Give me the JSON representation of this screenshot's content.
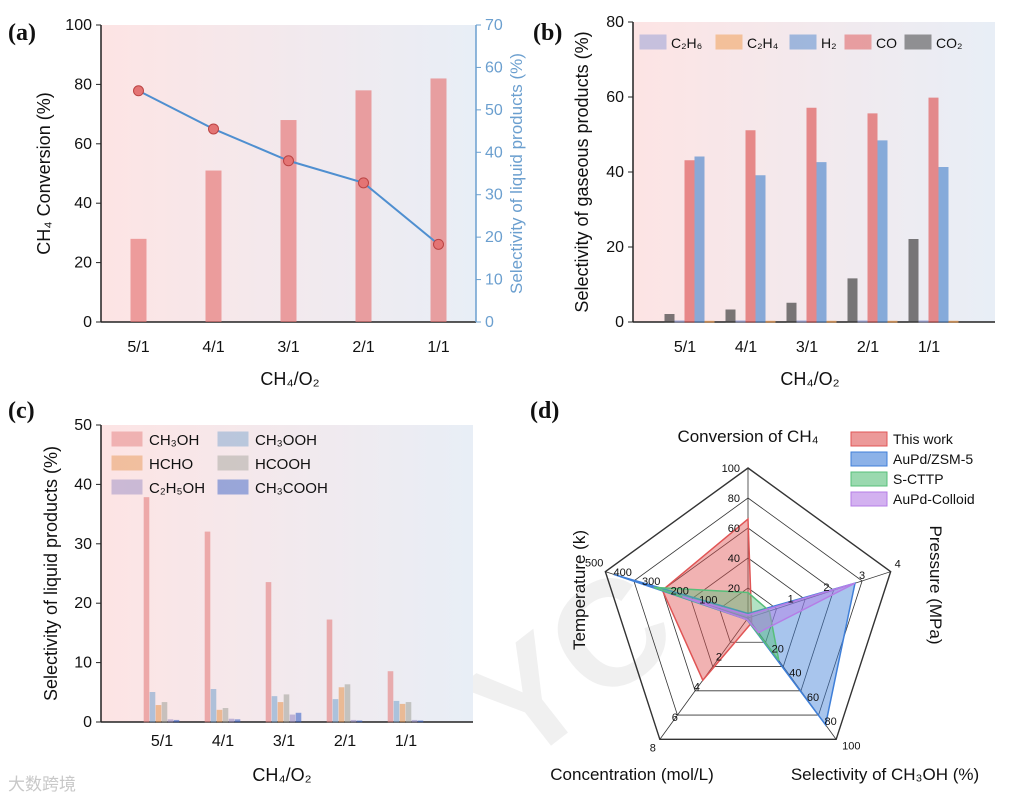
{
  "watermark": "大数跨境",
  "colors": {
    "ch4": "#e57373",
    "line": "#4f8fd0",
    "line_axis": "#6b9fcf",
    "C2H6": "#9aa3d8",
    "C2H4": "#f0a25a",
    "H2": "#5b8fd0",
    "CO": "#e06060",
    "CO2": "#444444",
    "CH3OH": "#e58080",
    "CH3OOH": "#7fa7cf",
    "HCHO": "#e89a5a",
    "HCOOH": "#a8a8a0",
    "C2H5OH": "#9b8fc6",
    "CH3COOH": "#3f66c8",
    "this_work": "#e05555",
    "aupd_zsm5": "#3f7fd8",
    "s_cttp": "#57bf7a",
    "aupd_colloid": "#b57de6"
  },
  "chart_data": [
    {
      "panel": "(a)",
      "type": "bar",
      "categories": [
        "5/1",
        "4/1",
        "3/1",
        "2/1",
        "1/1"
      ],
      "xlabel": "CH₄/O₂",
      "ylabel": "CH₄ Conversion (%)",
      "y2label": "Selectivity of liquid products (%)",
      "ylim": [
        0,
        100
      ],
      "y2lim": [
        0,
        70
      ],
      "yticks": [
        "0",
        "20",
        "40",
        "60",
        "80",
        "100"
      ],
      "y2ticks": [
        "0",
        "10",
        "20",
        "30",
        "40",
        "50",
        "60",
        "70"
      ],
      "series": [
        {
          "type": "bar",
          "values": [
            28,
            51,
            68,
            78,
            82
          ]
        },
        {
          "type": "line",
          "axis": "right",
          "values": [
            54.5,
            45.5,
            38,
            32.8,
            18.3
          ]
        }
      ]
    },
    {
      "panel": "(b)",
      "type": "bar",
      "categories": [
        "5/1",
        "4/1",
        "3/1",
        "2/1",
        "1/1"
      ],
      "xlabel": "CH₄/O₂",
      "ylabel": "Selectivity of gaseous products (%)",
      "ylim": [
        0,
        80
      ],
      "yticks": [
        "0",
        "20",
        "40",
        "60",
        "80"
      ],
      "legend_position": "top",
      "series": [
        {
          "name": "C₂H₆",
          "color_key": "C2H6",
          "values": [
            0.3,
            0.3,
            0.3,
            0.3,
            0.3
          ]
        },
        {
          "name": "C₂H₄",
          "color_key": "C2H4",
          "values": [
            0.2,
            0.2,
            0.2,
            0.2,
            0.2
          ]
        },
        {
          "name": "H₂",
          "color_key": "H2",
          "values": [
            44,
            39,
            42.5,
            48.3,
            41.2
          ]
        },
        {
          "name": "CO",
          "color_key": "CO",
          "values": [
            43,
            51,
            57,
            55.5,
            59.7
          ]
        },
        {
          "name": "CO₂",
          "color_key": "CO2",
          "values": [
            2,
            3.2,
            5,
            11.5,
            22
          ]
        }
      ]
    },
    {
      "panel": "(c)",
      "type": "bar",
      "categories": [
        "5/1",
        "4/1",
        "3/1",
        "2/1",
        "1/1"
      ],
      "xlabel": "CH₄/O₂",
      "ylabel": "Selectivity of liquid products (%)",
      "ylim": [
        0,
        50
      ],
      "yticks": [
        "0",
        "10",
        "20",
        "30",
        "40",
        "50"
      ],
      "legend_position": "top-left",
      "series": [
        {
          "name": "CH₃OH",
          "color_key": "CH3OH",
          "values": [
            37.8,
            32,
            23.5,
            17.2,
            8.5
          ]
        },
        {
          "name": "CH₃OOH",
          "color_key": "CH3OOH",
          "values": [
            5,
            5.5,
            4.3,
            3.8,
            3.5
          ]
        },
        {
          "name": "HCHO",
          "color_key": "HCHO",
          "values": [
            2.8,
            2,
            3.3,
            5.8,
            3
          ]
        },
        {
          "name": "HCOOH",
          "color_key": "HCOOH",
          "values": [
            3.3,
            2.3,
            4.6,
            6.3,
            3.3
          ]
        },
        {
          "name": "C₂H₅OH",
          "color_key": "C2H5OH",
          "values": [
            0.4,
            0.5,
            1.2,
            0.3,
            0.3
          ]
        },
        {
          "name": "CH₃COOH",
          "color_key": "CH3COOH",
          "values": [
            0.3,
            0.4,
            1.5,
            0.2,
            0.2
          ]
        }
      ]
    },
    {
      "panel": "(d)",
      "type": "radar",
      "axes": [
        {
          "label": "Conversion of CH₄",
          "max": 100,
          "ticks": [
            "0",
            "20",
            "40",
            "60",
            "80",
            "100"
          ]
        },
        {
          "label": "Pressure (MPa)",
          "max": 4,
          "ticks": [
            "0",
            "1",
            "2",
            "3",
            "4"
          ]
        },
        {
          "label": "Selectivity of CH₃OH (%)",
          "max": 100,
          "ticks": [
            "0",
            "20",
            "40",
            "60",
            "80",
            "100"
          ]
        },
        {
          "label": "Concentration (mol/L)",
          "max": 8,
          "ticks": [
            "0",
            "2",
            "4",
            "6",
            "8"
          ]
        },
        {
          "label": "Temperature (k)",
          "max": 500,
          "ticks": [
            "0",
            "100",
            "200",
            "300",
            "400",
            "500"
          ]
        }
      ],
      "series": [
        {
          "name": "This work",
          "color_key": "this_work",
          "values": [
            66,
            0.1,
            4,
            4.1,
            300
          ]
        },
        {
          "name": "AuPd/ZSM-5",
          "color_key": "aupd_zsm5",
          "values": [
            3,
            3,
            88,
            0.1,
            470
          ]
        },
        {
          "name": "S-CTTP",
          "color_key": "s_cttp",
          "values": [
            17,
            0.6,
            35,
            0.1,
            330
          ]
        },
        {
          "name": "AuPd-Colloid",
          "color_key": "aupd_colloid",
          "values": [
            2,
            3,
            12,
            0.1,
            230
          ]
        }
      ]
    }
  ]
}
